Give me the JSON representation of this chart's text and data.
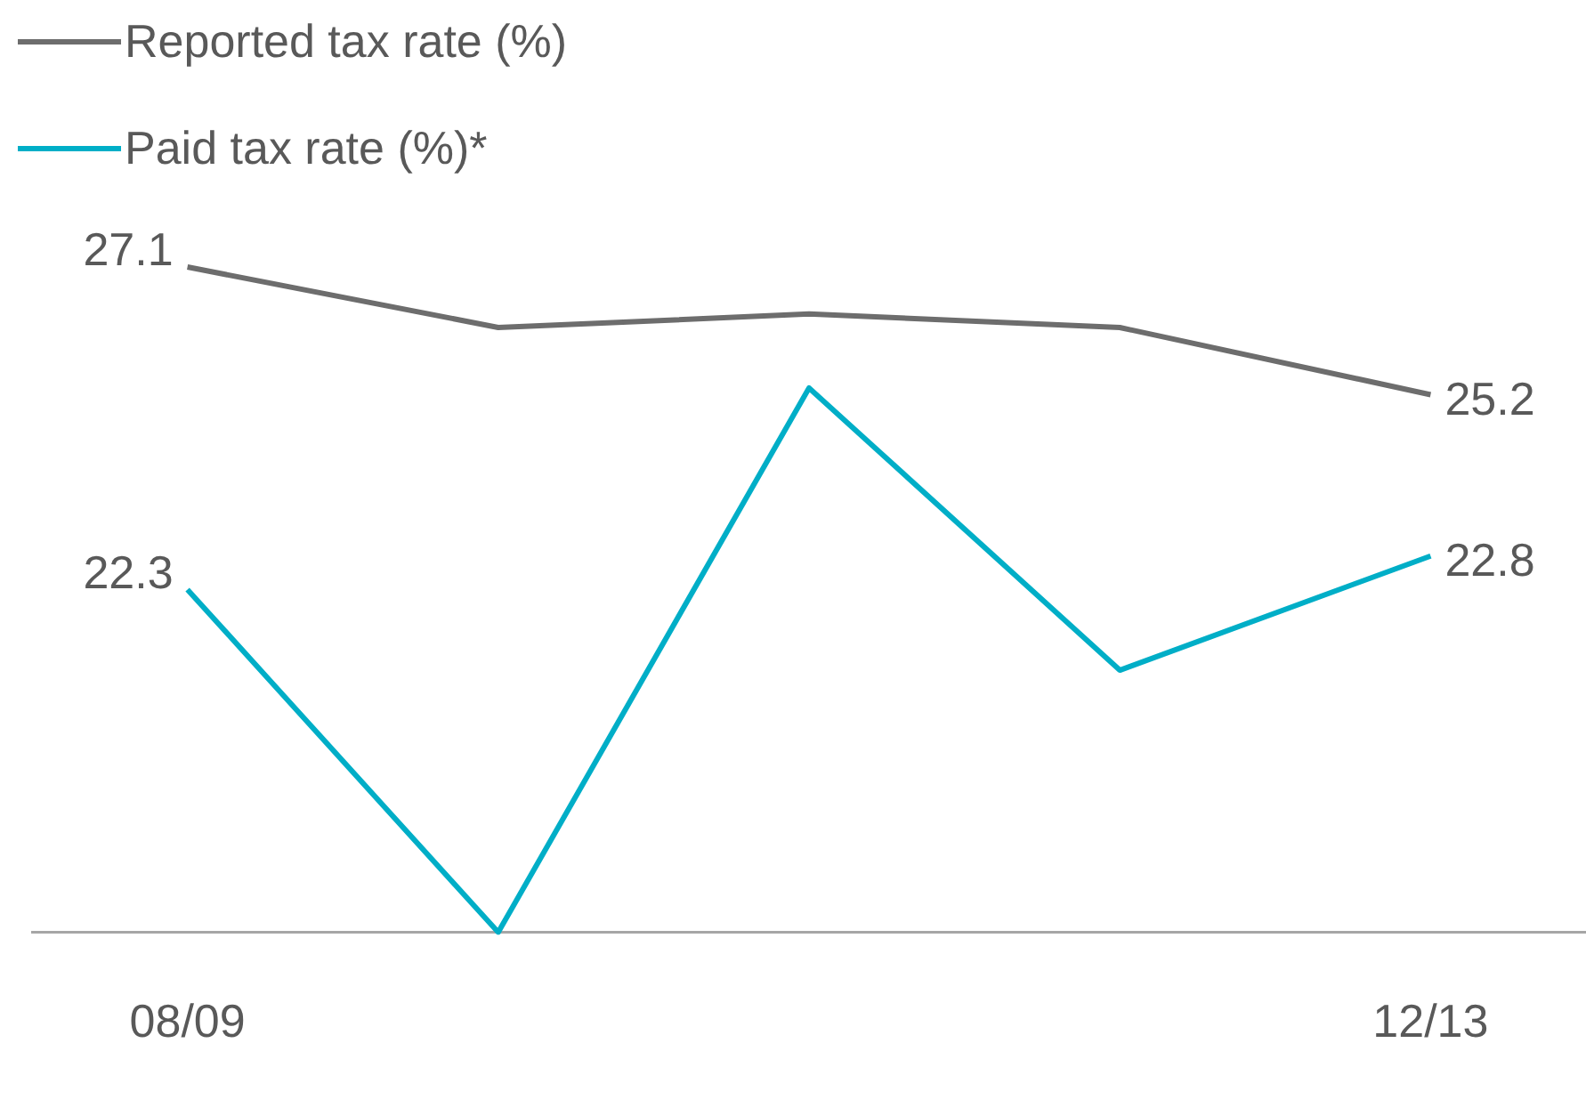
{
  "chart_data": {
    "type": "line",
    "categories": [
      "08/09",
      null,
      null,
      null,
      "12/13"
    ],
    "legend": "top left",
    "grid": false,
    "tick_labels": "x",
    "marker": "none",
    "series": [
      {
        "name": "Reported tax rate (%)",
        "color": "#6d6d6d",
        "values": [
          27.1,
          26.2,
          26.4,
          26.2,
          25.2
        ],
        "value_labels": [
          "27.1",
          null,
          null,
          null,
          "25.2"
        ]
      },
      {
        "name": "Paid tax rate (%)*",
        "color": "#00aec7",
        "values": [
          22.3,
          17.2,
          25.3,
          21.1,
          22.8
        ],
        "value_labels": [
          "22.3",
          null,
          null,
          null,
          "22.8"
        ]
      }
    ]
  }
}
